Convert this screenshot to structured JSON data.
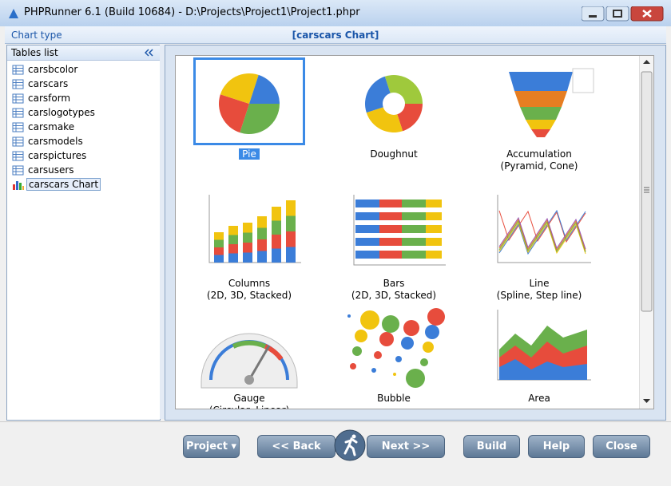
{
  "window": {
    "title": "PHPRunner 6.1 (Build 10684) - D:\\Projects\\Project1\\Project1.phpr"
  },
  "header": {
    "label": "Chart type",
    "title": "[carscars Chart]"
  },
  "tables_panel": {
    "title": "Tables list",
    "items": [
      "carsbcolor",
      "carscars",
      "carsform",
      "carslogotypes",
      "carsmake",
      "carsmodels",
      "carspictures",
      "carsusers",
      "carscars Chart"
    ],
    "selected": 8
  },
  "chart_types": {
    "selected": 0,
    "items": [
      {
        "lines": [
          "Pie"
        ]
      },
      {
        "lines": [
          "Doughnut"
        ]
      },
      {
        "lines": [
          "Accumulation",
          "(Pyramid, Cone)"
        ]
      },
      {
        "lines": [
          "Columns",
          "(2D, 3D, Stacked)"
        ]
      },
      {
        "lines": [
          "Bars",
          "(2D, 3D, Stacked)"
        ]
      },
      {
        "lines": [
          "Line",
          "(Spline, Step line)"
        ]
      },
      {
        "lines": [
          "Gauge",
          "(Circular, Linear)"
        ]
      },
      {
        "lines": [
          "Bubble"
        ]
      },
      {
        "lines": [
          "Area"
        ]
      }
    ]
  },
  "buttons": [
    "Project",
    "<< Back",
    "Next >>",
    "Build",
    "Help",
    "Close"
  ]
}
